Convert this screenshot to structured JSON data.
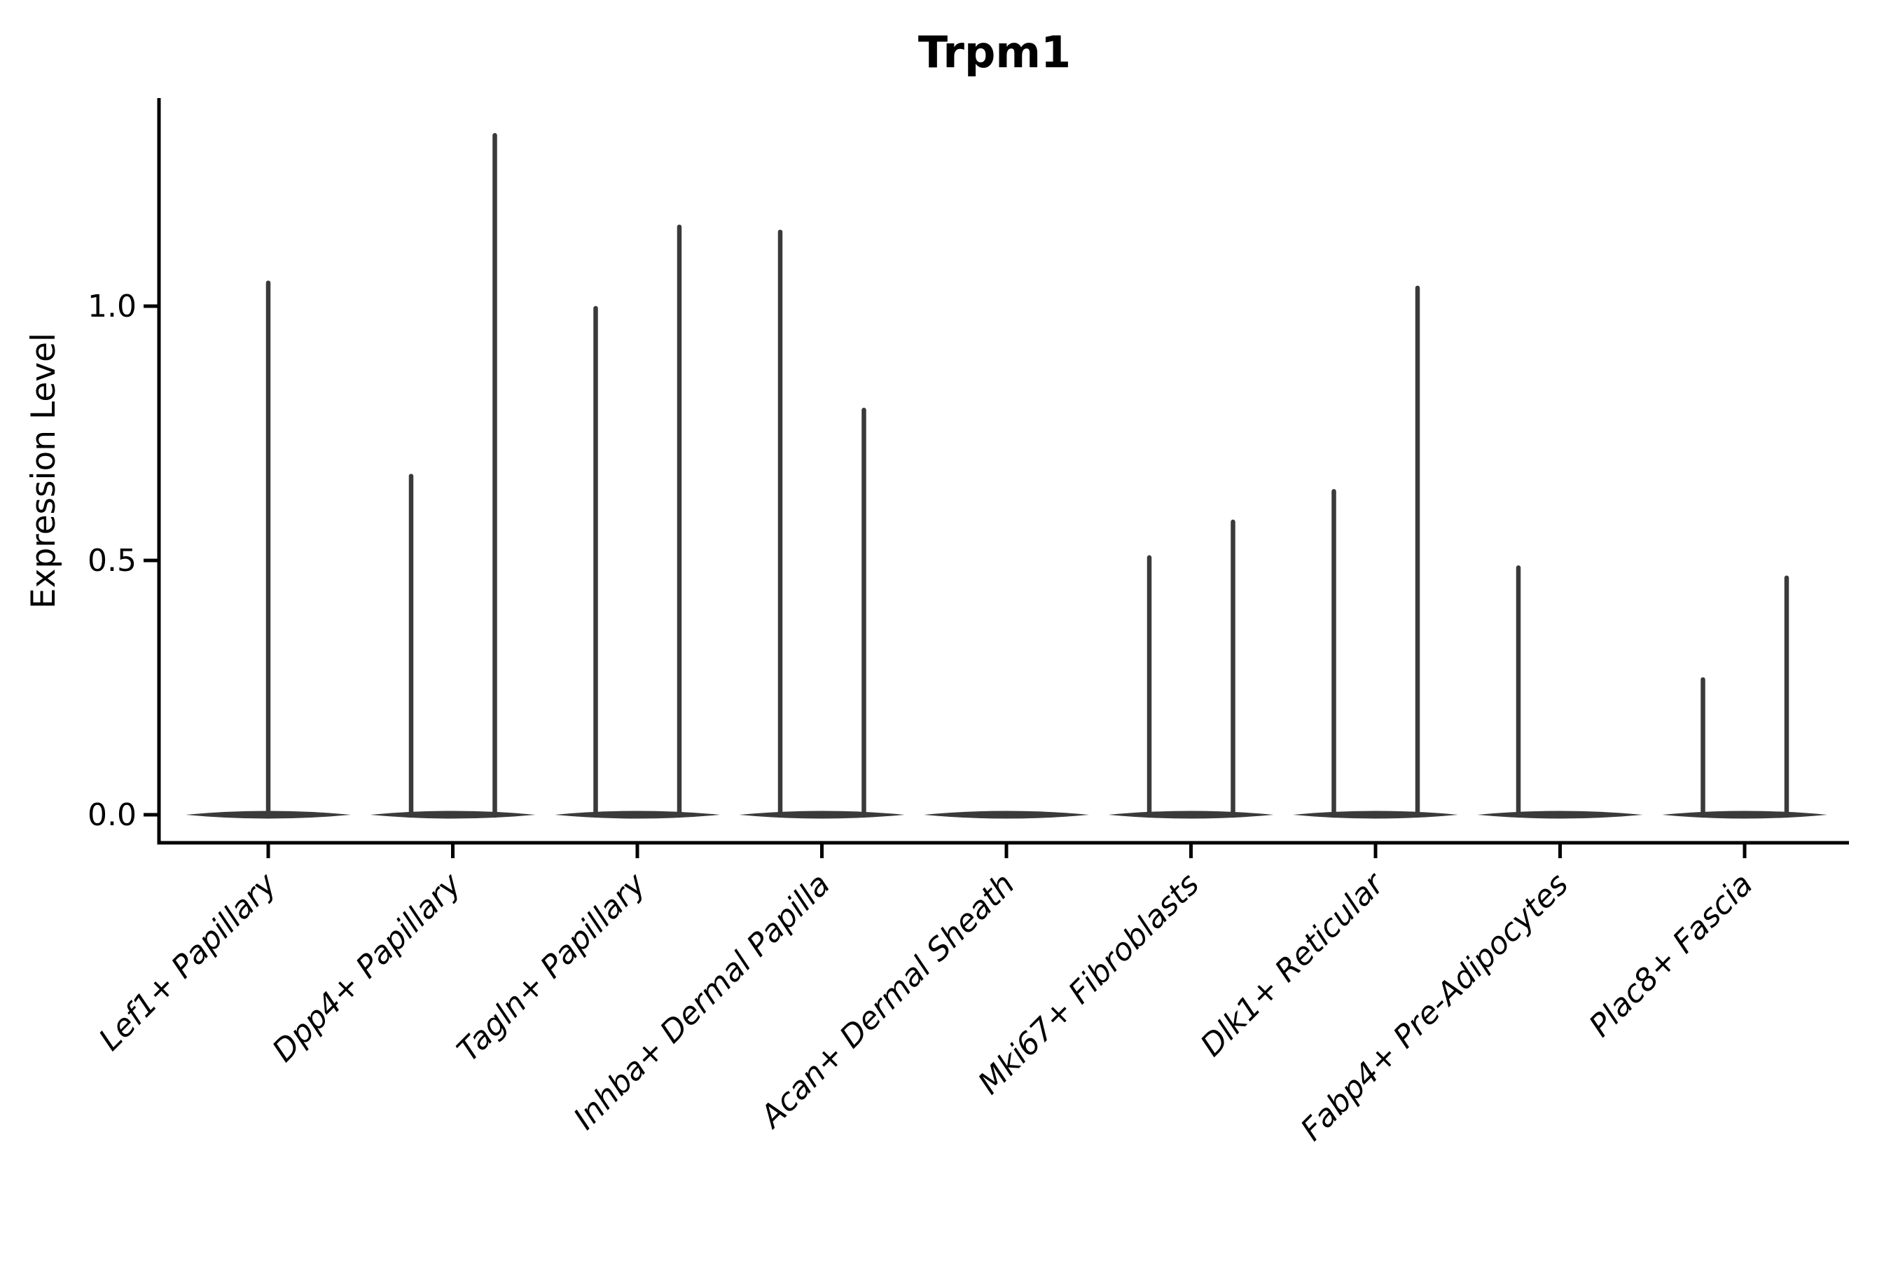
{
  "title": "Trpm1",
  "y_axis": {
    "label": "Expression Level",
    "tick_labels": [
      "0.0",
      "0.5",
      "1.0"
    ]
  },
  "chart_data": {
    "type": "violin",
    "title": "Trpm1",
    "xlabel": "",
    "ylabel": "Expression Level",
    "ylim": [
      0,
      1.41
    ],
    "y_ticks": [
      0.0,
      0.5,
      1.0
    ],
    "grid": false,
    "legend": "none",
    "violin_color": "#3a3a3a",
    "categories": [
      "Lef1+ Papillary",
      "Dpp4+ Papillary",
      "Tagln+ Papillary",
      "Inhba+ Dermal Papilla",
      "Acan+ Dermal Sheath",
      "Mki67+ Fibroblasts",
      "Dlk1+ Reticular",
      "Fabp4+ Pre-Adipocytes",
      "Plac8+ Fascia"
    ],
    "violins": [
      {
        "category": "Lef1+ Papillary",
        "spikes": [
          {
            "pos": "center",
            "peak": 1.05
          }
        ]
      },
      {
        "category": "Dpp4+ Papillary",
        "spikes": [
          {
            "pos": "left",
            "peak": 0.67
          },
          {
            "pos": "right",
            "peak": 1.34
          }
        ]
      },
      {
        "category": "Tagln+ Papillary",
        "spikes": [
          {
            "pos": "left",
            "peak": 1.0
          },
          {
            "pos": "right",
            "peak": 1.16
          }
        ]
      },
      {
        "category": "Inhba+ Dermal Papilla",
        "spikes": [
          {
            "pos": "left",
            "peak": 1.15
          },
          {
            "pos": "right",
            "peak": 0.8
          }
        ]
      },
      {
        "category": "Acan+ Dermal Sheath",
        "spikes": []
      },
      {
        "category": "Mki67+ Fibroblasts",
        "spikes": [
          {
            "pos": "left",
            "peak": 0.51
          },
          {
            "pos": "right",
            "peak": 0.58
          }
        ]
      },
      {
        "category": "Dlk1+ Reticular",
        "spikes": [
          {
            "pos": "left",
            "peak": 0.64
          },
          {
            "pos": "right",
            "peak": 1.04
          }
        ]
      },
      {
        "category": "Fabp4+ Pre-Adipocytes",
        "spikes": [
          {
            "pos": "left",
            "peak": 0.49
          }
        ]
      },
      {
        "category": "Plac8+ Fascia",
        "spikes": [
          {
            "pos": "left",
            "peak": 0.27
          },
          {
            "pos": "right",
            "peak": 0.47
          }
        ]
      }
    ],
    "note": "Flat baseline lens at 0 for every category; thin vertical density spikes mark maximum expression of the few expressing cells."
  }
}
